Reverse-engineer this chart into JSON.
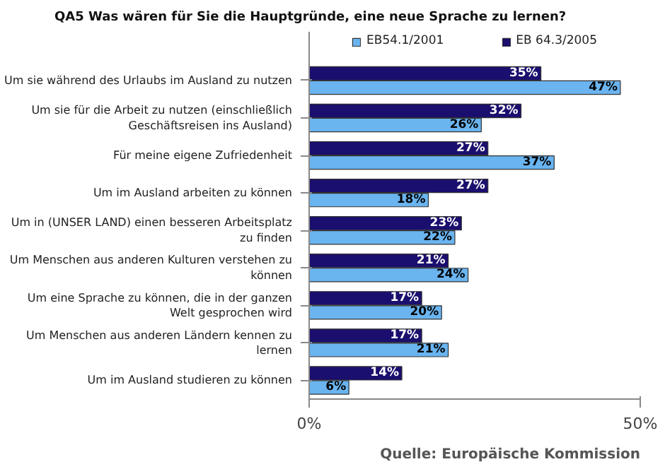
{
  "chart_data": {
    "type": "bar",
    "orientation": "horizontal",
    "title": "QA5 Was wären für Sie die Hauptgründe, eine neue Sprache zu lernen?",
    "categories": [
      "Um sie während des Urlaubs im Ausland zu nutzen",
      "Um sie für die Arbeit zu nutzen (einschließlich\nGeschäftsreisen ins Ausland)",
      "Für meine eigene Zufriedenheit",
      "Um im Ausland arbeiten zu können",
      "Um in (UNSER LAND) einen besseren Arbeitsplatz\nzu finden",
      "Um Menschen aus anderen Kulturen verstehen zu\nkönnen",
      "Um eine Sprache zu können, die in der ganzen\nWelt gesprochen wird",
      "Um Menschen aus anderen Ländern kennen zu\nlernen",
      "Um im Ausland studieren zu können"
    ],
    "series": [
      {
        "name": "EB54.1/2001",
        "color": "#6ab4f0",
        "values": [
          47,
          26,
          37,
          18,
          22,
          24,
          20,
          21,
          6
        ],
        "value_labels": [
          "47%",
          "26%",
          "37%",
          "18%",
          "22%",
          "24%",
          "20%",
          "21%",
          "6%"
        ]
      },
      {
        "name": "EB 64.3/2005",
        "color": "#1a0f6e",
        "values": [
          35,
          32,
          27,
          27,
          23,
          21,
          17,
          17,
          14
        ],
        "value_labels": [
          "35%",
          "32%",
          "27%",
          "27%",
          "23%",
          "21%",
          "17%",
          "17%",
          "14%"
        ]
      }
    ],
    "xlim": [
      0,
      50
    ],
    "xticks": [
      {
        "value": 0,
        "label": "0%"
      },
      {
        "value": 50,
        "label": "50%"
      }
    ],
    "grid": false,
    "legend": "top",
    "annotations": [
      "Quelle: Europäische Kommission"
    ]
  }
}
